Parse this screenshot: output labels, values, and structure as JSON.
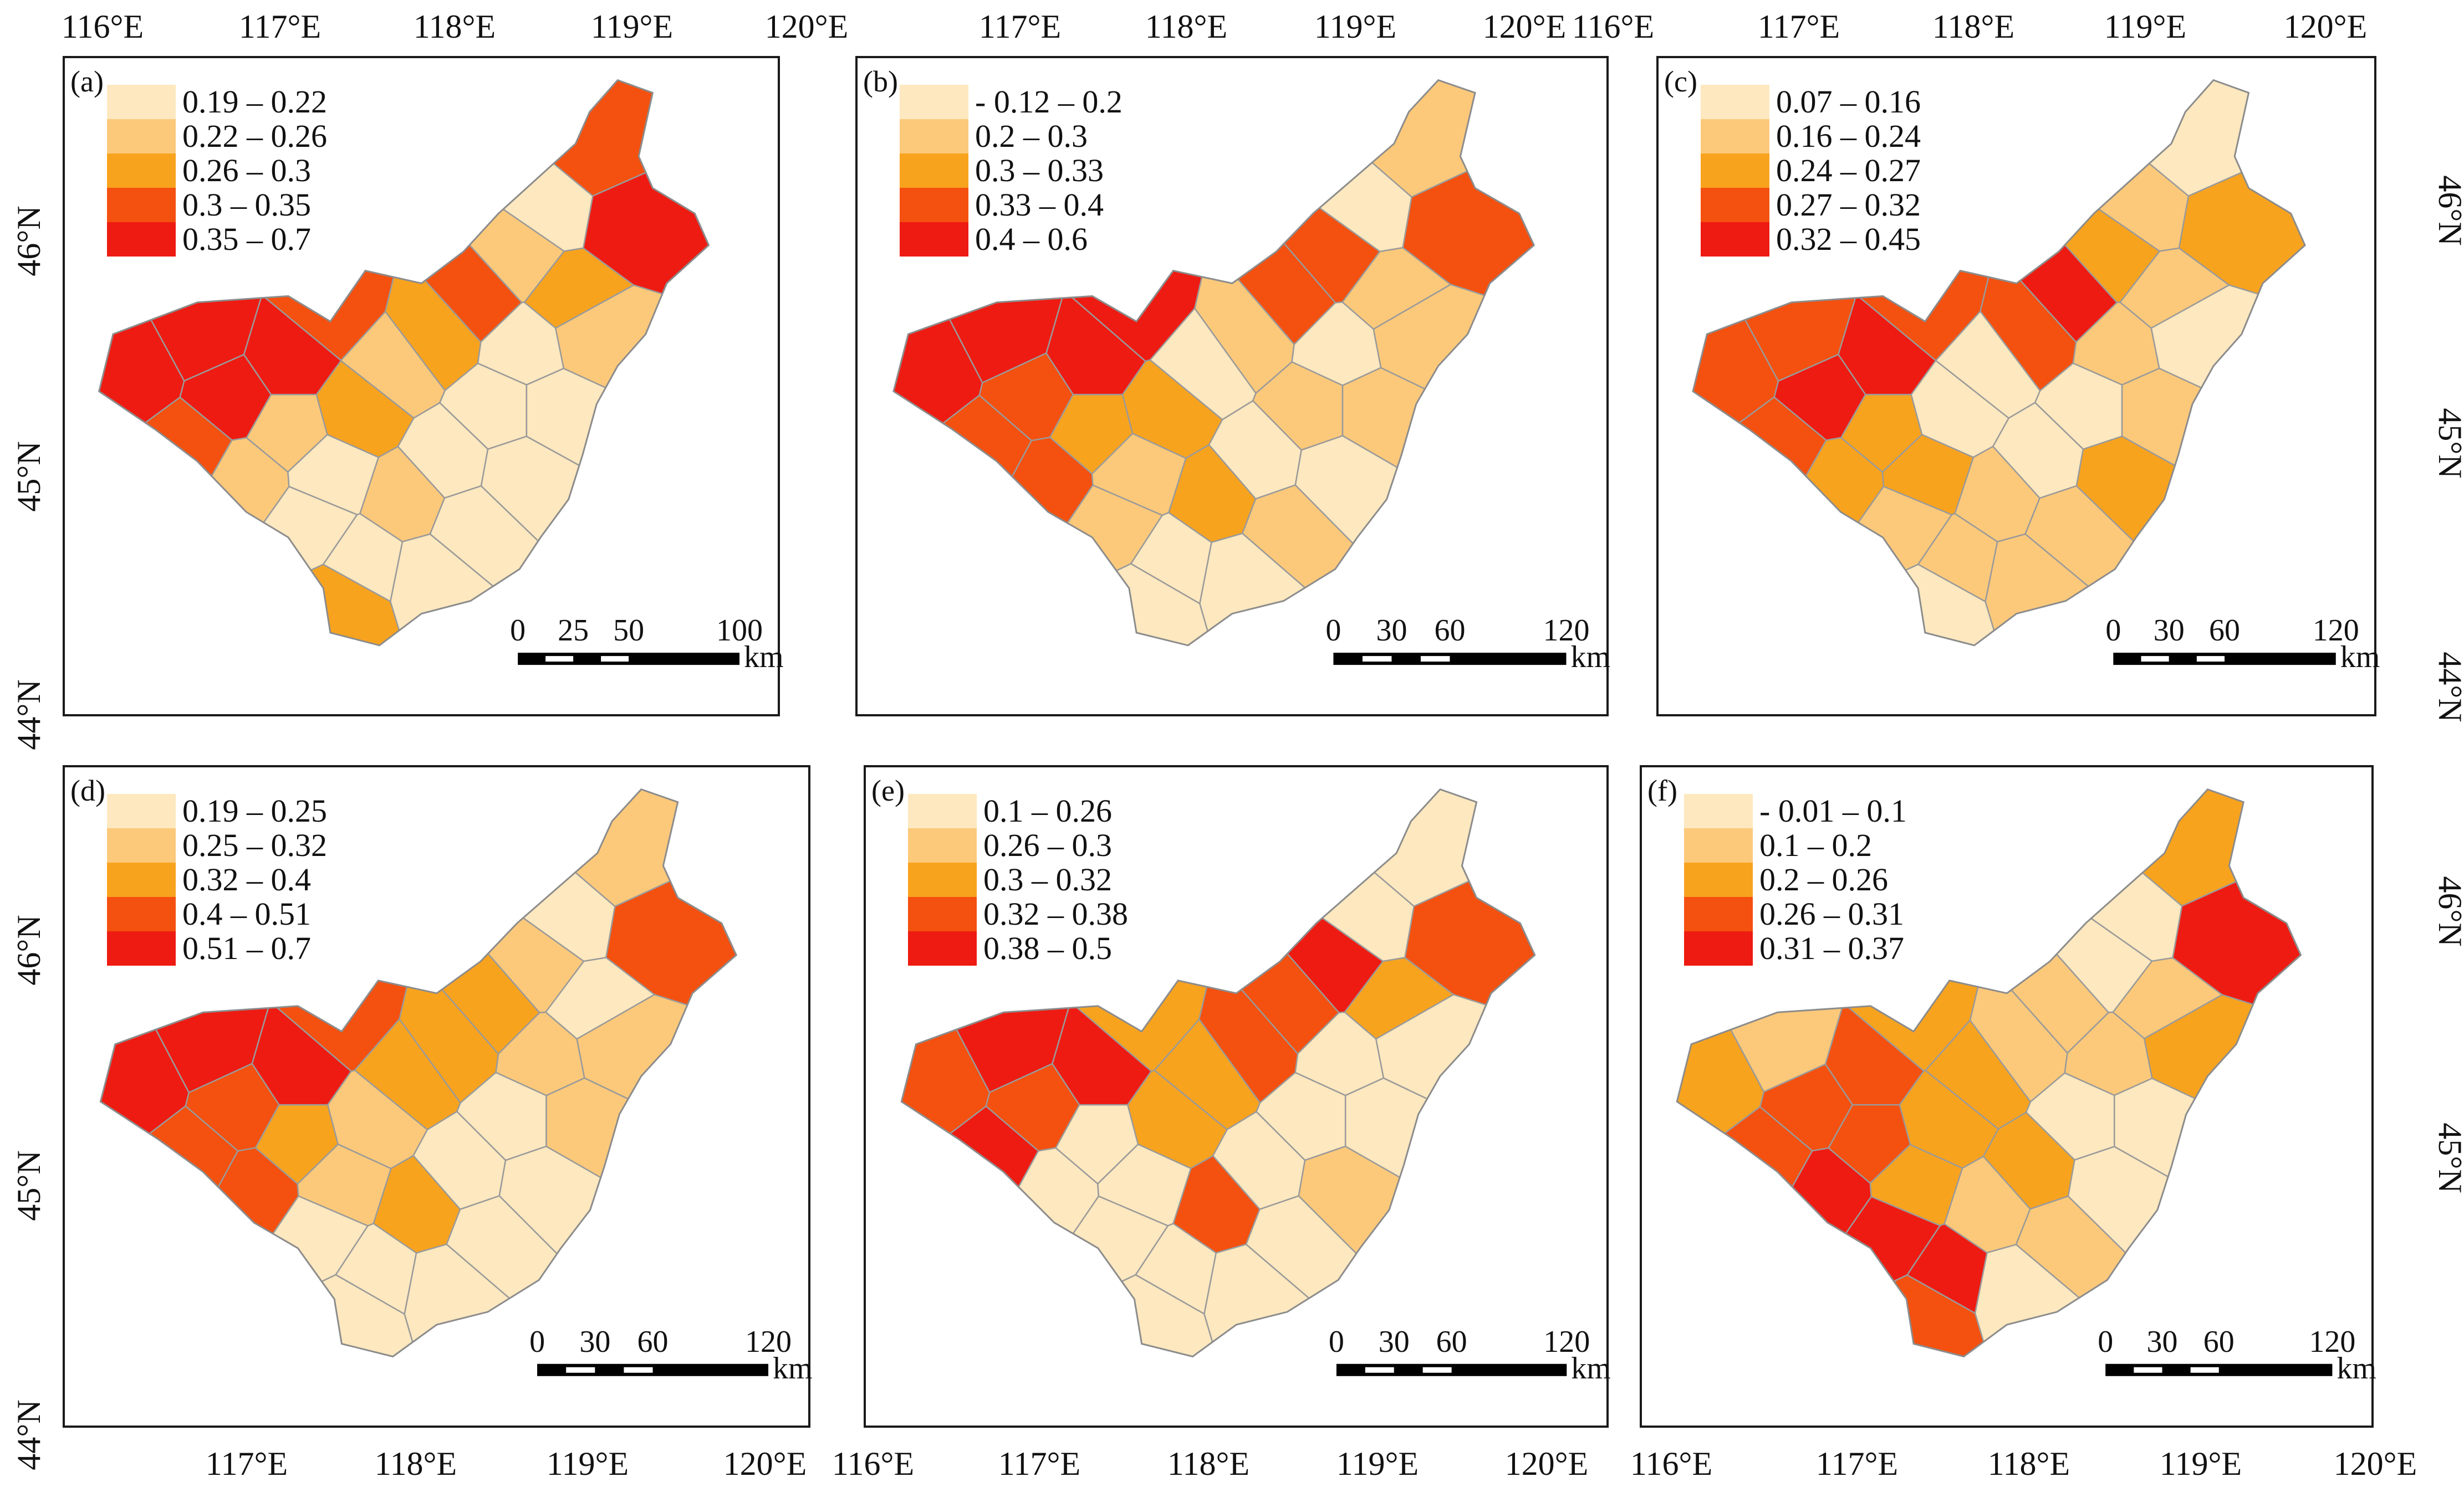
{
  "colors": [
    "#fde8bf",
    "#fcc97a",
    "#f8a31e",
    "#f4500f",
    "#ee1b12"
  ],
  "top_lon_labels": [
    "116°E",
    "117°E",
    "118°E",
    "119°E",
    "120°E",
    "117°E",
    "118°E",
    "119°E",
    "120°E",
    "116°E",
    "117°E",
    "118°E",
    "119°E",
    "120°E"
  ],
  "bottom_lon_labels": [
    "117°E",
    "118°E",
    "119°E",
    "120°E",
    "116°E",
    "117°E",
    "118°E",
    "119°E",
    "120°E",
    "116°E",
    "117°E",
    "118°E",
    "119°E",
    "120°E"
  ],
  "left_lat_labels": [
    "46°N",
    "45°N",
    "44°N",
    "46°N",
    "45°N",
    "44°N"
  ],
  "right_lat_labels": [
    "46°N",
    "45°N",
    "44°N",
    "46°N",
    "45°N"
  ],
  "panels": [
    {
      "label": "(a)",
      "legend": [
        "0.19 – 0.22",
        "0.22 – 0.26",
        "0.26 – 0.3",
        "0.3 – 0.35",
        "0.35 – 0.7"
      ],
      "scale": {
        "ticks": [
          "0",
          "25",
          "50",
          "100"
        ],
        "unit": "km"
      },
      "regions": [
        4,
        4,
        4,
        3,
        1,
        1,
        0,
        0,
        0,
        2,
        2,
        1,
        2,
        3,
        1,
        0,
        3,
        4,
        2,
        0,
        0,
        0,
        1,
        4,
        3,
        0,
        0,
        0,
        1,
        0
      ]
    },
    {
      "label": "(b)",
      "legend": [
        "- 0.12 – 0.2",
        "0.2 – 0.3",
        "0.3 – 0.33",
        "0.33 – 0.4",
        "0.4 – 0.6"
      ],
      "scale": {
        "ticks": [
          "0",
          "30",
          "60",
          "120"
        ],
        "unit": "km"
      },
      "regions": [
        4,
        4,
        3,
        3,
        3,
        2,
        1,
        1,
        0,
        0,
        2,
        0,
        1,
        3,
        3,
        0,
        1,
        3,
        1,
        0,
        1,
        0,
        2,
        4,
        4,
        1,
        0,
        1,
        1,
        0
      ]
    },
    {
      "label": "(c)",
      "legend": [
        "0.07 – 0.16",
        "0.16 – 0.24",
        "0.24 – 0.27",
        "0.27 – 0.32",
        "0.32 – 0.45"
      ],
      "scale": {
        "ticks": [
          "0",
          "30",
          "60",
          "120"
        ],
        "unit": "km"
      },
      "regions": [
        3,
        3,
        4,
        3,
        2,
        2,
        2,
        1,
        1,
        0,
        0,
        0,
        3,
        4,
        2,
        1,
        0,
        2,
        1,
        1,
        0,
        0,
        1,
        4,
        3,
        1,
        2,
        1,
        0,
        1
      ]
    },
    {
      "label": "(d)",
      "legend": [
        "0.19 – 0.25",
        "0.25 – 0.32",
        "0.32 – 0.4",
        "0.4 – 0.51",
        "0.51 – 0.7"
      ],
      "scale": {
        "ticks": [
          "0",
          "30",
          "60",
          "120"
        ],
        "unit": "km"
      },
      "regions": [
        4,
        4,
        3,
        3,
        3,
        2,
        1,
        0,
        0,
        0,
        1,
        2,
        2,
        2,
        1,
        0,
        1,
        3,
        0,
        1,
        0,
        0,
        2,
        4,
        3,
        0,
        0,
        1,
        1,
        0
      ]
    },
    {
      "label": "(e)",
      "legend": [
        "0.1 – 0.26",
        "0.26 – 0.3",
        "0.3 – 0.32",
        "0.32 – 0.38",
        "0.38 – 0.5"
      ],
      "scale": {
        "ticks": [
          "0",
          "30",
          "60",
          "120"
        ],
        "unit": "km"
      },
      "regions": [
        3,
        4,
        3,
        4,
        0,
        0,
        0,
        0,
        0,
        0,
        2,
        2,
        3,
        3,
        4,
        0,
        0,
        3,
        2,
        0,
        0,
        0,
        3,
        4,
        2,
        0,
        1,
        0,
        0,
        0
      ]
    },
    {
      "label": "(f)",
      "legend": [
        "- 0.01 – 0.1",
        "0.1 – 0.2",
        "0.2 – 0.26",
        "0.26 – 0.31",
        "0.31 – 0.37"
      ],
      "scale": {
        "ticks": [
          "0",
          "30",
          "60",
          "120"
        ],
        "unit": "km"
      },
      "regions": [
        2,
        1,
        3,
        3,
        4,
        3,
        2,
        4,
        4,
        3,
        2,
        2,
        1,
        1,
        0,
        0,
        2,
        4,
        1,
        1,
        0,
        2,
        1,
        3,
        2,
        1,
        0,
        0,
        2,
        0
      ]
    }
  ]
}
